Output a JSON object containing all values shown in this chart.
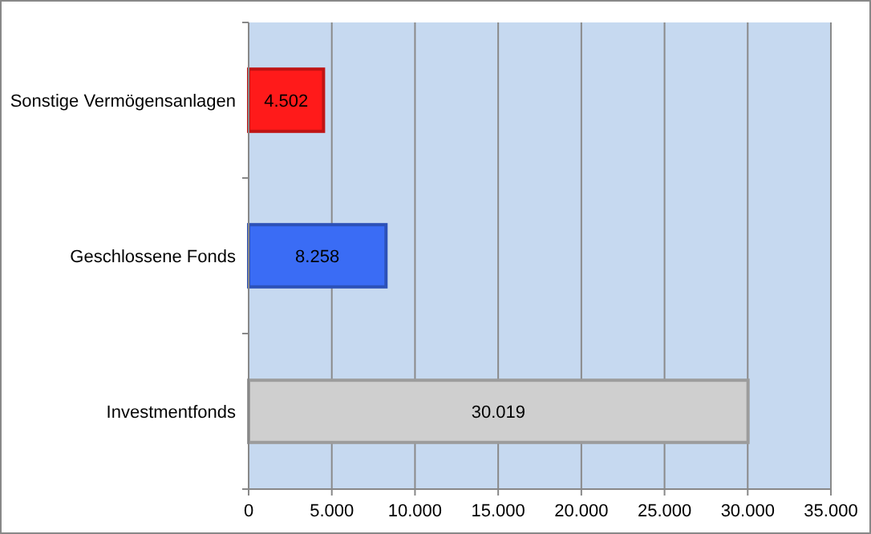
{
  "chart_data": {
    "type": "bar",
    "orientation": "horizontal",
    "categories": [
      "Sonstige Vermögensanlagen",
      "Geschlossene Fonds",
      "Investmentfonds"
    ],
    "values": [
      4502,
      8258,
      30019
    ],
    "colors": [
      "#ff1a1a",
      "#3a6cf5",
      "#cfcfcf"
    ],
    "value_labels": [
      "4.502",
      "8.258",
      "30.019"
    ],
    "xlim": [
      0,
      35000
    ],
    "xticks": [
      0,
      {
        "value": 5000,
        "label": "5.000"
      },
      {
        "value": 10000,
        "label": "10.000"
      },
      {
        "value": 15000,
        "label": "15.000"
      },
      {
        "value": 20000,
        "label": "20.000"
      },
      {
        "value": 25000,
        "label": "25.000"
      },
      {
        "value": 30000,
        "label": "30.000"
      },
      {
        "value": 35000,
        "label": "35.000"
      }
    ],
    "grid": "x"
  }
}
